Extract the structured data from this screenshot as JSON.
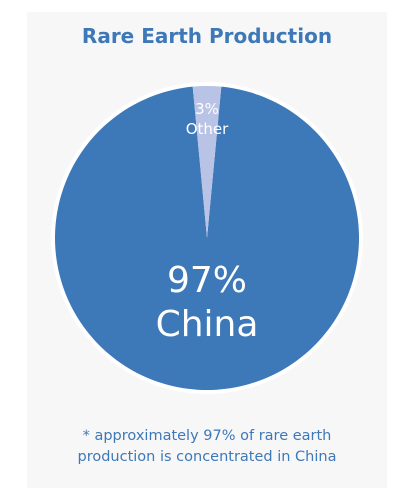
{
  "chart_data": {
    "type": "pie",
    "title": "Rare Earth Production",
    "slices": [
      {
        "percent_label": "97%",
        "category": "China",
        "value": 97,
        "color": "#3d78b8",
        "label_color": "#ffffff"
      },
      {
        "percent_label": "3%",
        "category": "Other",
        "value": 3,
        "color": "#b8c3e6",
        "label_color": "#ffffff"
      }
    ],
    "border_color": "#ffffff",
    "footnote_line1": "* approximately 97% of rare earth",
    "footnote_line2": "production is concentrated in China"
  }
}
